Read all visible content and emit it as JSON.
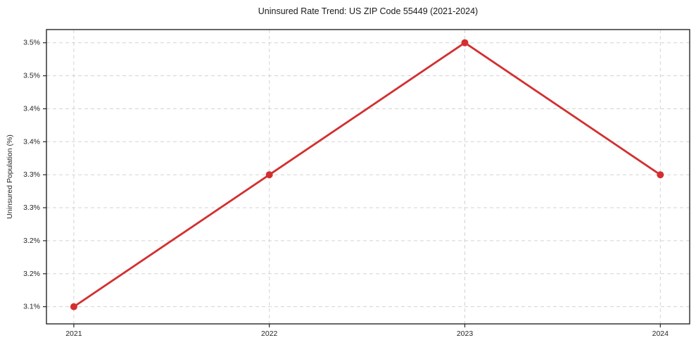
{
  "chart_data": {
    "type": "line",
    "title": "Uninsured Rate Trend: US ZIP Code 55449 (2021-2024)",
    "xlabel": "",
    "ylabel": "Uninsured Population (%)",
    "x": [
      2021,
      2022,
      2023,
      2024
    ],
    "values": [
      3.1,
      3.3,
      3.5,
      3.3
    ],
    "xlim": [
      2020.86,
      2024.15
    ],
    "ylim": [
      3.074,
      3.52
    ],
    "xticks": [
      {
        "value": 2021,
        "label": "2021"
      },
      {
        "value": 2022,
        "label": "2022"
      },
      {
        "value": 2023,
        "label": "2023"
      },
      {
        "value": 2024,
        "label": "2024"
      }
    ],
    "yticks": [
      {
        "value": 3.5,
        "label": "3.5%"
      },
      {
        "value": 3.45,
        "label": "3.5%"
      },
      {
        "value": 3.4,
        "label": "3.4%"
      },
      {
        "value": 3.35,
        "label": "3.4%"
      },
      {
        "value": 3.3,
        "label": "3.3%"
      },
      {
        "value": 3.25,
        "label": "3.3%"
      },
      {
        "value": 3.2,
        "label": "3.2%"
      },
      {
        "value": 3.15,
        "label": "3.2%"
      },
      {
        "value": 3.1,
        "label": "3.1%"
      }
    ],
    "grid": true,
    "grid_style": "dashed",
    "legend": "none",
    "marker": "circle",
    "colors": {
      "line": "#d32f2f",
      "marker": "#d32f2f",
      "grid": "#cccccc",
      "spine": "#262626",
      "text": "#262626",
      "background": "#ffffff"
    }
  }
}
